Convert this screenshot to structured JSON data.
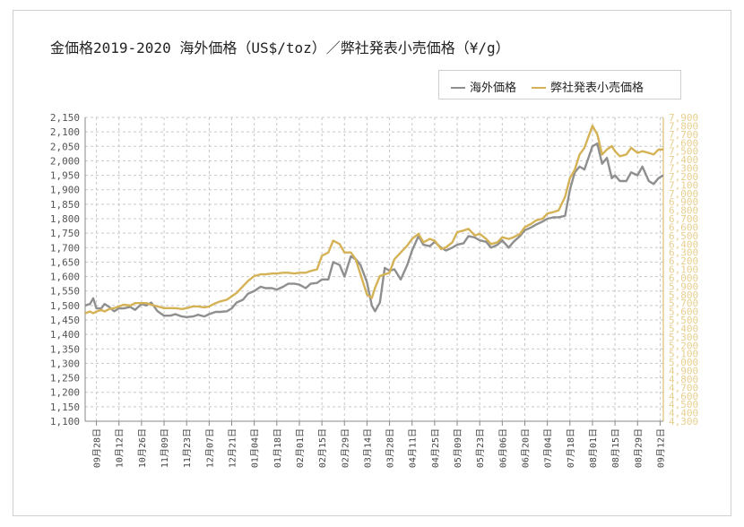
{
  "title": "金価格2019-2020 海外価格（US$/toz）／弊社発表小売価格（¥/g）",
  "legend": {
    "overseas_label": "海外価格",
    "retail_label": "弊社発表小売価格"
  },
  "colors": {
    "overseas": "#8f8f8f",
    "retail": "#d4b255",
    "grid": "#c8c8c8",
    "left_tick_text": "#555555",
    "right_tick_text": "#e7cf8e"
  },
  "chart_data": {
    "type": "line",
    "title": "金価格2019-2020 海外価格（US$/toz）／弊社発表小売価格（¥/g）",
    "xlabel": "",
    "ylabel": "",
    "ylim": [
      1100,
      2150
    ],
    "y2lim": [
      4300,
      7900
    ],
    "grid": true,
    "legend_position": "top-right",
    "y_ticks": [
      "2,150",
      "2,100",
      "2,050",
      "2,000",
      "1,950",
      "1,900",
      "1,850",
      "1,800",
      "1,750",
      "1,700",
      "1,650",
      "1,600",
      "1,550",
      "1,500",
      "1,450",
      "1,400",
      "1,350",
      "1,300",
      "1,250",
      "1,200",
      "1,150",
      "1,100"
    ],
    "y2_ticks": [
      "7,900",
      "7,800",
      "7,700",
      "7,600",
      "7,500",
      "7,400",
      "7,300",
      "7,200",
      "7,100",
      "7,000",
      "6,900",
      "6,800",
      "6,700",
      "6,600",
      "6,500",
      "6,400",
      "6,300",
      "6,200",
      "6,100",
      "6,000",
      "5,900",
      "5,800",
      "5,700",
      "5,600",
      "5,500",
      "5,400",
      "5,300",
      "5,200",
      "5,100",
      "5,000",
      "4,900",
      "4,800",
      "4,700",
      "4,600",
      "4,500",
      "4,400",
      "4,300"
    ],
    "x_ticks": [
      "09月28日",
      "10月12日",
      "10月26日",
      "11月09日",
      "11月23日",
      "12月07日",
      "12月21日",
      "01月04日",
      "01月18日",
      "02月01日",
      "02月15日",
      "02月29日",
      "03月14日",
      "03月28日",
      "04月11日",
      "04月25日",
      "05月09日",
      "05月23日",
      "06月06日",
      "06月20日",
      "07月04日",
      "07月18日",
      "08月01日",
      "08月15日",
      "08月29日",
      "09月12日"
    ],
    "x_range": [
      "09月21日",
      "09月14日"
    ],
    "series": [
      {
        "name": "海外価格",
        "axis": "left",
        "x": [
          "09月21日",
          "09月24日",
          "09月26日",
          "09月28日",
          "10月01日",
          "10月03日",
          "10月06日",
          "10月09日",
          "10月12日",
          "10月15日",
          "10月19日",
          "10月22日",
          "10月26日",
          "10月29日",
          "11月01日",
          "11月05日",
          "11月09日",
          "11月13日",
          "11月16日",
          "11月20日",
          "11月23日",
          "11月27日",
          "11月30日",
          "12月04日",
          "12月07日",
          "12月11日",
          "12月14日",
          "12月18日",
          "12月21日",
          "12月24日",
          "12月28日",
          "12月31日",
          "01月04日",
          "01月08日",
          "01月11日",
          "01月15日",
          "01月18日",
          "01月22日",
          "01月25日",
          "01月29日",
          "02月01日",
          "02月05日",
          "02月08日",
          "02月12日",
          "02月15日",
          "02月19日",
          "02月22日",
          "02月26日",
          "02月29日",
          "03月04日",
          "03月07日",
          "03月10日",
          "03月14日",
          "03月17日",
          "03月19日",
          "03月22日",
          "03月25日",
          "03月28日",
          "03月31日",
          "04月04日",
          "04月08日",
          "04月11日",
          "04月15日",
          "04月18日",
          "04月22日",
          "04月25日",
          "04月29日",
          "05月02日",
          "05月06日",
          "05月09日",
          "05月13日",
          "05月16日",
          "05月20日",
          "05月23日",
          "05月27日",
          "05月30日",
          "06月03日",
          "06月06日",
          "06月10日",
          "06月13日",
          "06月17日",
          "06月20日",
          "06月24日",
          "06月27日",
          "07月01日",
          "07月04日",
          "07月08日",
          "07月11日",
          "07月15日",
          "07月18日",
          "07月21日",
          "07月24日",
          "07月27日",
          "08月01日",
          "08月04日",
          "08月07日",
          "08月10日",
          "08月13日",
          "08月15日",
          "08月18日",
          "08月22日",
          "08月25日",
          "08月29日",
          "09月01日",
          "09月05日",
          "09月08日",
          "09月11日",
          "09月14日"
        ],
        "values": [
          1500,
          1505,
          1525,
          1490,
          1490,
          1505,
          1495,
          1480,
          1490,
          1490,
          1495,
          1485,
          1505,
          1500,
          1510,
          1480,
          1465,
          1465,
          1470,
          1462,
          1460,
          1462,
          1468,
          1462,
          1470,
          1478,
          1478,
          1480,
          1490,
          1510,
          1520,
          1540,
          1550,
          1565,
          1560,
          1560,
          1555,
          1565,
          1575,
          1575,
          1572,
          1560,
          1575,
          1578,
          1590,
          1590,
          1650,
          1640,
          1600,
          1670,
          1660,
          1640,
          1580,
          1500,
          1480,
          1510,
          1630,
          1620,
          1625,
          1590,
          1640,
          1690,
          1740,
          1710,
          1705,
          1720,
          1700,
          1690,
          1700,
          1710,
          1715,
          1740,
          1735,
          1725,
          1720,
          1700,
          1710,
          1725,
          1700,
          1720,
          1740,
          1760,
          1770,
          1780,
          1790,
          1800,
          1805,
          1805,
          1810,
          1900,
          1960,
          1980,
          1970,
          2050,
          2060,
          1990,
          2010,
          1940,
          1950,
          1930,
          1930,
          1960,
          1950,
          1980,
          1930,
          1920,
          1940,
          1950
        ]
      },
      {
        "name": "弊社発表小売価格",
        "axis": "right",
        "x": [
          "09月21日",
          "09月24日",
          "09月26日",
          "09月28日",
          "10月01日",
          "10月03日",
          "10月06日",
          "10月09日",
          "10月12日",
          "10月15日",
          "10月19日",
          "10月22日",
          "10月26日",
          "10月29日",
          "11月01日",
          "11月05日",
          "11月09日",
          "11月13日",
          "11月16日",
          "11月20日",
          "11月23日",
          "11月27日",
          "11月30日",
          "12月04日",
          "12月07日",
          "12月11日",
          "12月14日",
          "12月18日",
          "12月21日",
          "12月24日",
          "12月28日",
          "12月31日",
          "01月04日",
          "01月08日",
          "01月11日",
          "01月15日",
          "01月18日",
          "01月22日",
          "01月25日",
          "01月29日",
          "02月01日",
          "02月05日",
          "02月08日",
          "02月12日",
          "02月15日",
          "02月19日",
          "02月22日",
          "02月26日",
          "02月29日",
          "03月04日",
          "03月07日",
          "03月10日",
          "03月14日",
          "03月17日",
          "03月19日",
          "03月22日",
          "03月25日",
          "03月28日",
          "03月31日",
          "04月04日",
          "04月08日",
          "04月11日",
          "04月15日",
          "04月18日",
          "04月22日",
          "04月25日",
          "04月29日",
          "05月02日",
          "05月06日",
          "05月09日",
          "05月13日",
          "05月16日",
          "05月20日",
          "05月23日",
          "05月27日",
          "05月30日",
          "06月03日",
          "06月06日",
          "06月10日",
          "06月13日",
          "06月17日",
          "06月20日",
          "06月24日",
          "06月27日",
          "07月01日",
          "07月04日",
          "07月08日",
          "07月11日",
          "07月15日",
          "07月18日",
          "07月21日",
          "07月24日",
          "07月27日",
          "08月01日",
          "08月04日",
          "08月07日",
          "08月10日",
          "08月13日",
          "08月15日",
          "08月18日",
          "08月22日",
          "08月25日",
          "08月29日",
          "09月01日",
          "09月05日",
          "09月08日",
          "09月11日",
          "09月14日"
        ],
        "values": [
          5580,
          5600,
          5580,
          5600,
          5620,
          5600,
          5630,
          5640,
          5660,
          5680,
          5670,
          5700,
          5700,
          5700,
          5680,
          5660,
          5640,
          5640,
          5640,
          5630,
          5640,
          5660,
          5660,
          5650,
          5660,
          5700,
          5720,
          5740,
          5780,
          5820,
          5900,
          5960,
          6020,
          6040,
          6040,
          6050,
          6050,
          6060,
          6060,
          6050,
          6060,
          6060,
          6080,
          6100,
          6260,
          6300,
          6440,
          6400,
          6300,
          6300,
          6220,
          6040,
          5800,
          5760,
          5880,
          6020,
          6040,
          6060,
          6220,
          6300,
          6380,
          6460,
          6520,
          6420,
          6460,
          6440,
          6340,
          6360,
          6420,
          6540,
          6560,
          6580,
          6500,
          6520,
          6460,
          6400,
          6420,
          6480,
          6460,
          6480,
          6520,
          6600,
          6640,
          6680,
          6700,
          6760,
          6780,
          6800,
          6960,
          7180,
          7280,
          7460,
          7540,
          7800,
          7700,
          7460,
          7520,
          7560,
          7500,
          7440,
          7460,
          7540,
          7480,
          7500,
          7480,
          7460,
          7520,
          7520
        ]
      }
    ]
  }
}
